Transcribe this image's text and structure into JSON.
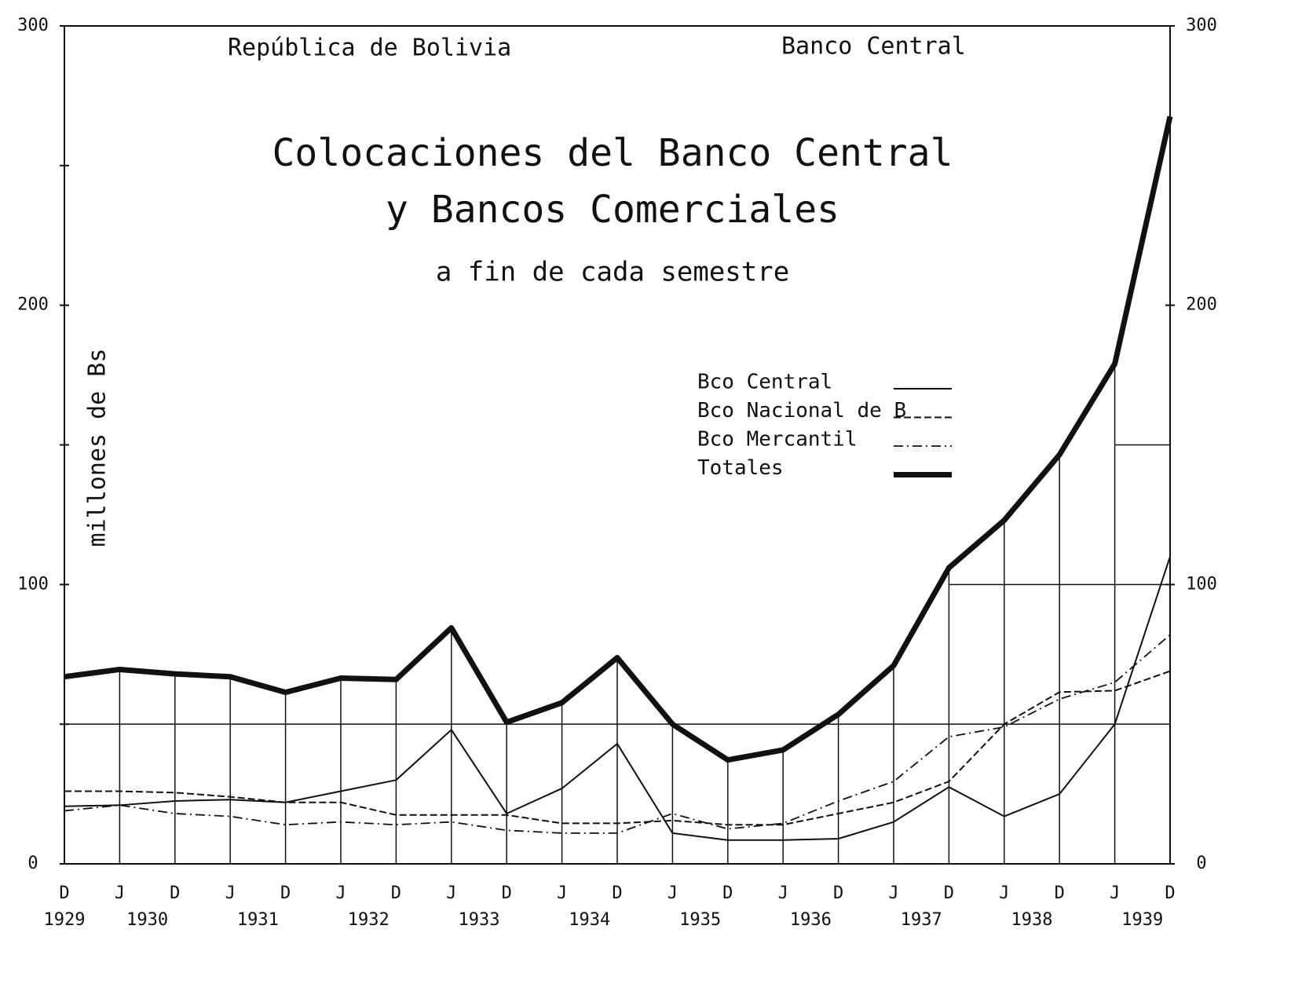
{
  "chart_data": {
    "type": "line",
    "header_left": "República de Bolivia",
    "header_right": "Banco Central",
    "title": "Colocaciones del Banco Central",
    "title_line2": "y Bancos Comerciales",
    "subtitle": "a fin de cada semestre",
    "ylabel": "millones de Bs",
    "categories": [
      "D",
      "J",
      "D",
      "J",
      "D",
      "J",
      "D",
      "J",
      "D",
      "J",
      "D",
      "J",
      "D",
      "J",
      "D",
      "J",
      "D",
      "J",
      "D",
      "J",
      "D"
    ],
    "years": [
      "1929",
      "1930",
      "1931",
      "1932",
      "1933",
      "1934",
      "1935",
      "1936",
      "1937",
      "1938",
      "1939"
    ],
    "series": [
      {
        "name": "Bco Central",
        "color": "#111111",
        "style": "solid",
        "values": [
          20.6,
          21,
          22.5,
          23,
          22,
          26,
          30,
          48,
          18,
          27,
          43,
          11,
          8.5,
          8.5,
          9,
          15,
          27.5,
          17,
          25,
          50,
          110
        ]
      },
      {
        "name": "Bco Nacional de B",
        "color": "#111111",
        "style": "ticked",
        "values": [
          26,
          26,
          25.5,
          24,
          22,
          22,
          17.5,
          17.5,
          17.5,
          14.5,
          14.5,
          15.5,
          14,
          14,
          18,
          22,
          29.5,
          50,
          61.5,
          62,
          69
        ]
      },
      {
        "name": "Bco Mercantil",
        "color": "#111111",
        "style": "dashdot",
        "values": [
          19,
          21,
          18,
          17,
          14,
          15,
          14,
          15,
          12,
          11,
          11,
          18,
          12.5,
          14.5,
          22.5,
          29.5,
          45.5,
          49,
          59,
          65,
          82
        ]
      },
      {
        "name": "Totales",
        "color": "#111111",
        "style": "thick",
        "values": [
          67,
          69.6,
          68,
          67,
          61.4,
          66.5,
          66,
          84.5,
          50.7,
          57.7,
          73.8,
          50,
          37.2,
          40.8,
          53.5,
          71,
          106,
          123,
          146.5,
          179,
          267.6
        ]
      }
    ],
    "ylim": [
      0,
      300
    ],
    "yticks": [
      0,
      100,
      200,
      300
    ],
    "minor_yticks": [
      50,
      150,
      250
    ],
    "y2lim": [
      0,
      300
    ],
    "y2ticks": [
      0,
      100,
      200,
      300
    ],
    "grid": true
  }
}
